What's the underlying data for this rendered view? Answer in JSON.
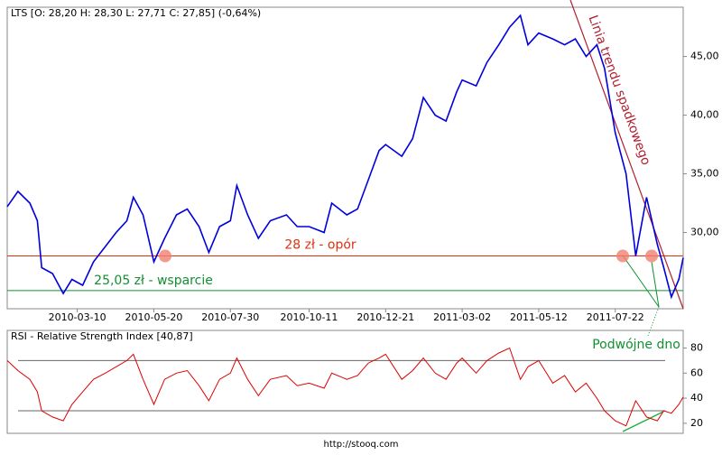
{
  "chart_data": [
    {
      "type": "line",
      "title": "LTS [O: 28,20  H: 28,30  L: 27,71  C: 27,85] (-0,64%)",
      "x": [
        "2010-01-04",
        "2010-01-14",
        "2010-01-25",
        "2010-02-01",
        "2010-02-05",
        "2010-02-15",
        "2010-02-25",
        "2010-03-05",
        "2010-03-15",
        "2010-03-25",
        "2010-04-05",
        "2010-04-15",
        "2010-04-25",
        "2010-05-01",
        "2010-05-10",
        "2010-05-20",
        "2010-05-30",
        "2010-06-10",
        "2010-06-20",
        "2010-07-01",
        "2010-07-10",
        "2010-07-20",
        "2010-07-30",
        "2010-08-05",
        "2010-08-15",
        "2010-08-25",
        "2010-09-05",
        "2010-09-20",
        "2010-09-30",
        "2010-10-11",
        "2010-10-25",
        "2010-11-01",
        "2010-11-15",
        "2010-11-25",
        "2010-12-05",
        "2010-12-15",
        "2010-12-21",
        "2011-01-05",
        "2011-01-15",
        "2011-01-25",
        "2011-02-05",
        "2011-02-15",
        "2011-02-25",
        "2011-03-02",
        "2011-03-15",
        "2011-03-25",
        "2011-04-05",
        "2011-04-15",
        "2011-04-25",
        "2011-05-02",
        "2011-05-12",
        "2011-05-25",
        "2011-06-05",
        "2011-06-15",
        "2011-06-25",
        "2011-07-05",
        "2011-07-12",
        "2011-07-22",
        "2011-08-01",
        "2011-08-10",
        "2011-08-20",
        "2011-08-30",
        "2011-09-05",
        "2011-09-12",
        "2011-09-19",
        "2011-09-23"
      ],
      "series": [
        {
          "color": "#0000dd",
          "values": [
            32.2,
            33.5,
            32.5,
            31.0,
            27.0,
            26.5,
            24.8,
            26.0,
            25.5,
            27.5,
            28.8,
            30.0,
            31.0,
            33.0,
            31.5,
            27.5,
            29.5,
            31.5,
            32.0,
            30.5,
            28.3,
            30.5,
            31.0,
            34.0,
            31.5,
            29.5,
            31.0,
            31.5,
            30.5,
            30.5,
            30.0,
            32.5,
            31.5,
            32.0,
            34.5,
            37.0,
            37.5,
            36.5,
            38.0,
            41.5,
            40.0,
            39.5,
            42.0,
            43.0,
            42.5,
            44.5,
            46.0,
            47.5,
            48.5,
            46.0,
            47.0,
            46.5,
            46.0,
            46.5,
            45.0,
            46.0,
            44.0,
            38.5,
            35.0,
            28.0,
            33.0,
            29.0,
            27.0,
            24.5,
            26.0,
            27.85
          ]
        }
      ],
      "xlim": [
        "2010-01-04",
        "2011-09-23"
      ],
      "xticks": [
        "2010-03-10",
        "2010-05-20",
        "2010-07-30",
        "2010-10-11",
        "2010-12-21",
        "2011-03-02",
        "2011-05-12",
        "2011-07-22"
      ],
      "ylim": [
        23.5,
        49.2
      ],
      "yticks": [
        {
          "value": 30,
          "label": "30,00"
        },
        {
          "value": 35,
          "label": "35,00"
        },
        {
          "value": 40,
          "label": "40,00"
        },
        {
          "value": 45,
          "label": "45,00"
        }
      ],
      "hlines": [
        {
          "value": 28,
          "label": "28 zł - opór",
          "color": "#e03010"
        },
        {
          "value": 25.05,
          "label": "25,05 zł - wsparcie",
          "color": "#109030"
        }
      ],
      "annotations": [
        "Linia trendu spadkowego",
        "Podwójne dno"
      ]
    },
    {
      "type": "line",
      "title": "RSI - Relative Strength Index [40,87]",
      "x": [
        "2010-01-04",
        "2010-01-14",
        "2010-01-25",
        "2010-02-01",
        "2010-02-05",
        "2010-02-15",
        "2010-02-25",
        "2010-03-05",
        "2010-03-15",
        "2010-03-25",
        "2010-04-05",
        "2010-04-15",
        "2010-04-25",
        "2010-05-01",
        "2010-05-10",
        "2010-05-20",
        "2010-05-30",
        "2010-06-10",
        "2010-06-20",
        "2010-07-01",
        "2010-07-10",
        "2010-07-20",
        "2010-07-30",
        "2010-08-05",
        "2010-08-15",
        "2010-08-25",
        "2010-09-05",
        "2010-09-20",
        "2010-09-30",
        "2010-10-11",
        "2010-10-25",
        "2010-11-01",
        "2010-11-15",
        "2010-11-25",
        "2010-12-05",
        "2010-12-15",
        "2010-12-21",
        "2011-01-05",
        "2011-01-15",
        "2011-01-25",
        "2011-02-05",
        "2011-02-15",
        "2011-02-25",
        "2011-03-02",
        "2011-03-15",
        "2011-03-25",
        "2011-04-05",
        "2011-04-15",
        "2011-04-25",
        "2011-05-02",
        "2011-05-12",
        "2011-05-25",
        "2011-06-05",
        "2011-06-15",
        "2011-06-25",
        "2011-07-05",
        "2011-07-12",
        "2011-07-22",
        "2011-08-01",
        "2011-08-10",
        "2011-08-20",
        "2011-08-30",
        "2011-09-05",
        "2011-09-12",
        "2011-09-19",
        "2011-09-23"
      ],
      "series": [
        {
          "color": "#dd0000",
          "values": [
            70,
            62,
            55,
            45,
            30,
            25,
            22,
            35,
            45,
            55,
            60,
            65,
            70,
            75,
            55,
            35,
            55,
            60,
            62,
            50,
            38,
            55,
            60,
            72,
            55,
            42,
            55,
            58,
            50,
            52,
            48,
            60,
            55,
            58,
            68,
            72,
            75,
            55,
            62,
            72,
            60,
            55,
            68,
            72,
            60,
            70,
            76,
            80,
            55,
            65,
            70,
            52,
            58,
            45,
            52,
            40,
            30,
            22,
            18,
            38,
            25,
            22,
            30,
            28,
            35,
            41
          ]
        }
      ],
      "xlim": [
        "2010-01-04",
        "2011-09-23"
      ],
      "ylim": [
        12,
        94
      ],
      "yticks": [
        20,
        40,
        60,
        80
      ],
      "reference_lines": [
        30,
        70
      ]
    }
  ],
  "footer": "http://stooq.com"
}
